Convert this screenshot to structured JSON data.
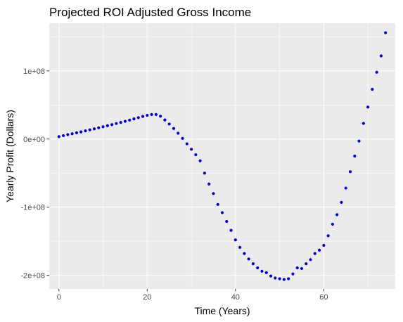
{
  "chart_data": {
    "type": "scatter",
    "title": "Projected ROI Adjusted Gross Income",
    "xlabel": "Time (Years)",
    "ylabel": "Yearly Profit (Dollars)",
    "xlim": [
      -2.2,
      76.2
    ],
    "ylim": [
      -220000000,
      170000000
    ],
    "x_ticks": [
      0,
      20,
      40,
      60
    ],
    "x_tick_labels": [
      "0",
      "20",
      "40",
      "60"
    ],
    "y_ticks": [
      -200000000,
      -100000000,
      0,
      100000000
    ],
    "y_tick_labels": [
      "-2e+08",
      "-1e+08",
      "0e+00",
      "1e+08"
    ],
    "grid": true,
    "point_color": "#0000CD",
    "panel_background": "#EBEBEB",
    "grid_color": "#FFFFFF",
    "series": [
      {
        "x": [
          0,
          1,
          2,
          3,
          4,
          5,
          6,
          7,
          8,
          9,
          10,
          11,
          12,
          13,
          14,
          15,
          16,
          17,
          18,
          19,
          20,
          21,
          22,
          23,
          24,
          25,
          26,
          27,
          28,
          29,
          30,
          31,
          32,
          33,
          34,
          35,
          36,
          37,
          38,
          39,
          40,
          41,
          42,
          43,
          44,
          45,
          46,
          47,
          48,
          49,
          50,
          51,
          52,
          53,
          54,
          55,
          56,
          57,
          58,
          59,
          60,
          61,
          62,
          63,
          64,
          65,
          66,
          67,
          68,
          69,
          70,
          71,
          72,
          73,
          74
        ],
        "y": [
          3500000,
          5000000,
          6500000,
          7800000,
          9200000,
          10500000,
          12000000,
          13500000,
          15000000,
          16500000,
          18000000,
          19600000,
          21200000,
          22800000,
          24400000,
          26000000,
          27800000,
          29600000,
          31400000,
          33200000,
          34800000,
          36000000,
          36000000,
          33500000,
          28000000,
          22000000,
          15500000,
          8500000,
          1000000,
          -7000000,
          -15000000,
          -23000000,
          -32000000,
          -50000000,
          -66000000,
          -80000000,
          -96000000,
          -108000000,
          -121000000,
          -134000000,
          -148000000,
          -159000000,
          -168000000,
          -176000000,
          -183000000,
          -189000000,
          -194000000,
          -196000000,
          -201000000,
          -204000000,
          -205000000,
          -206000000,
          -205000000,
          -198000000,
          -189000000,
          -190000000,
          -183000000,
          -177000000,
          -168000000,
          -163000000,
          -156000000,
          -142000000,
          -125000000,
          -111000000,
          -93000000,
          -72000000,
          -48000000,
          -25000000,
          -3000000,
          23000000,
          47000000,
          73000000,
          98000000,
          122000000,
          156000000
        ]
      }
    ]
  }
}
